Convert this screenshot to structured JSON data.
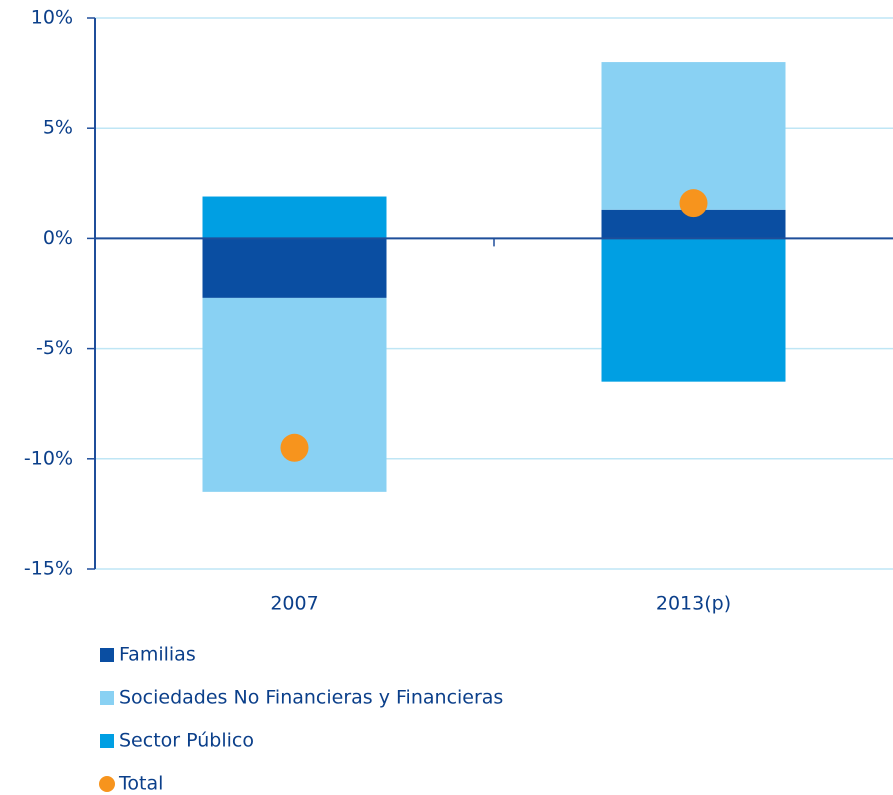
{
  "chart_data": {
    "type": "bar",
    "stacked": true,
    "categories": [
      "2007",
      "2013(p)"
    ],
    "series": [
      {
        "name": "Familias",
        "color": "#0a4ea2",
        "values": [
          -2.7,
          1.3
        ]
      },
      {
        "name": "Sociedades No Financieras y Financieras",
        "color": "#89d1f3",
        "values": [
          -8.8,
          6.7
        ]
      },
      {
        "name": "Sector Público",
        "color": "#009fe3",
        "values": [
          1.9,
          -6.5
        ]
      },
      {
        "name": "Total",
        "type": "scatter",
        "color": "#f7941d",
        "values": [
          -9.5,
          1.6
        ]
      }
    ],
    "ylim": [
      -15,
      10
    ],
    "yticks": [
      {
        "value": -15,
        "label": "-15%"
      },
      {
        "value": -10,
        "label": "-10%"
      },
      {
        "value": -5,
        "label": "-5%"
      },
      {
        "value": 0,
        "label": "0%"
      },
      {
        "value": 5,
        "label": "5%"
      },
      {
        "value": 10,
        "label": "10%"
      }
    ],
    "grid": true,
    "legend": "bottom"
  }
}
